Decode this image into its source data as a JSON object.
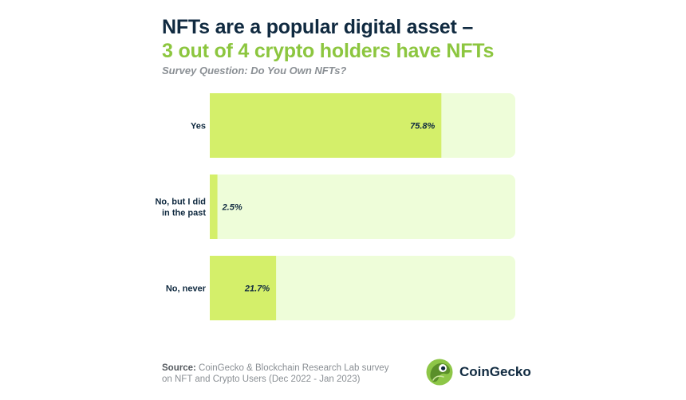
{
  "header": {
    "title_line1": "NFTs are a popular digital asset –",
    "title_line2": "3 out of 4 crypto holders have NFTs",
    "subtitle": "Survey Question: Do You Own NFTs?"
  },
  "chart_data": {
    "type": "bar",
    "orientation": "horizontal",
    "title": "NFTs are a popular digital asset – 3 out of 4 crypto holders have NFTs",
    "subtitle": "Survey Question: Do You Own NFTs?",
    "categories": [
      [
        "Yes"
      ],
      [
        "No, but I did",
        "in the past"
      ],
      [
        "No, never"
      ]
    ],
    "values": [
      75.8,
      2.5,
      21.7
    ],
    "value_labels": [
      "75.8%",
      "2.5%",
      "21.7%"
    ],
    "xlim": [
      0,
      100
    ],
    "unit": "%",
    "grid": false,
    "legend": "none"
  },
  "colors": {
    "bar_fill": "#d4ef6a",
    "track_fill": "#eefdd9",
    "title_dark": "#102a40",
    "title_green": "#8cc63f"
  },
  "footer": {
    "source_label": "Source:",
    "source_line1": "CoinGecko & Blockchain Research Lab survey",
    "source_line2": "on NFT and Crypto Users (Dec 2022 - Jan 2023)",
    "brand_name": "CoinGecko",
    "brand_icon": "gecko-logo-icon"
  }
}
